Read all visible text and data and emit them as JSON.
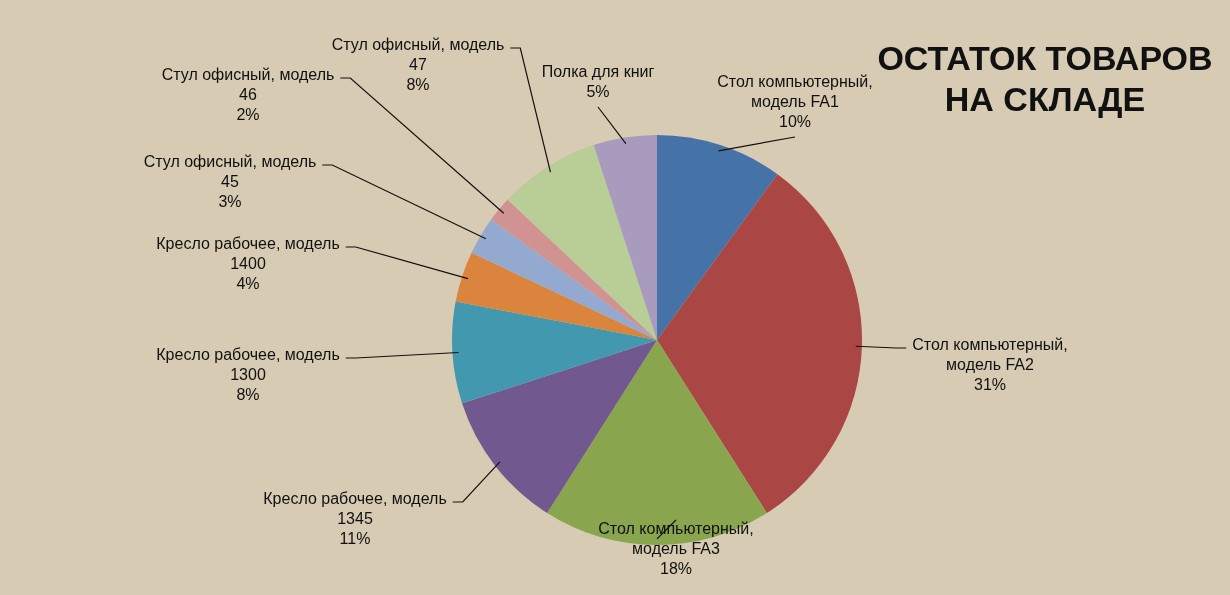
{
  "chart_data": {
    "type": "pie",
    "title": "ОСТАТОК ТОВАРОВ НА СКЛАДЕ",
    "categories": [
      "Стол компьютерный, модель FA1",
      "Стол компьютерный, модель FA2",
      "Стол компьютерный, модель FA3",
      "Кресло рабочее, модель 1345",
      "Кресло рабочее, модель 1300",
      "Кресло рабочее, модель 1400",
      "Стул офисный, модель 45",
      "Стул офисный, модель 46",
      "Стул офисный, модель 47",
      "Полка для книг"
    ],
    "values": [
      10,
      31,
      18,
      11,
      8,
      4,
      3,
      2,
      8,
      5
    ],
    "colors": [
      "#4572a7",
      "#aa4643",
      "#89a54e",
      "#71588f",
      "#4198af",
      "#db843d",
      "#93a9cf",
      "#d19392",
      "#b9cd96",
      "#a99bbd"
    ],
    "value_labels": [
      "10%",
      "31%",
      "18%",
      "11%",
      "8%",
      "4%",
      "3%",
      "2%",
      "8%",
      "5%"
    ],
    "legend": false
  }
}
